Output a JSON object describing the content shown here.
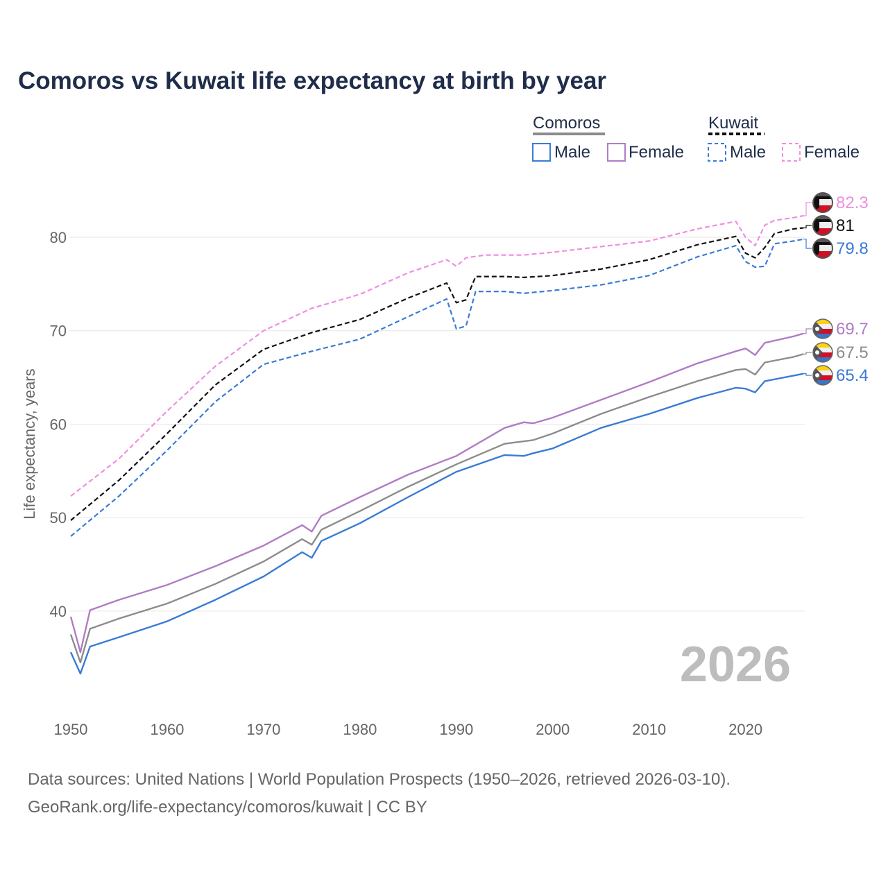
{
  "title": "Comoros vs Kuwait life expectancy at birth by year",
  "legend": {
    "groups": [
      {
        "label": "Comoros",
        "items": [
          {
            "label": "Male"
          },
          {
            "label": "Female"
          }
        ]
      },
      {
        "label": "Kuwait",
        "items": [
          {
            "label": "Male"
          },
          {
            "label": "Female"
          }
        ]
      }
    ]
  },
  "year_label": "2026",
  "sources": {
    "line1": "Data sources: United Nations | World Population Prospects (1950–2026, retrieved 2026-03-10).",
    "line2": "GeoRank.org/life-expectancy/comoros/kuwait | CC BY"
  },
  "flags": {
    "kuwait": {
      "icon": "kuwait-flag-icon",
      "colors": [
        "#111111",
        "#eeeeee",
        "#cf1124",
        "#555555"
      ]
    },
    "comoros": {
      "icon": "comoros-flag-icon",
      "colors": [
        "#fcd116",
        "#f0f0f0",
        "#ce1126",
        "#3a75c4",
        "#555555"
      ]
    }
  },
  "chart_data": {
    "type": "line",
    "title": "Comoros vs Kuwait life expectancy at birth by year",
    "xlabel": "",
    "ylabel": "Life expectancy, years",
    "xlim": [
      1950,
      2026
    ],
    "ylim": [
      30,
      87
    ],
    "xticks": [
      1950,
      1960,
      1970,
      1980,
      1990,
      2000,
      2010,
      2020
    ],
    "yticks": [
      40,
      50,
      60,
      70,
      80
    ],
    "grid": true,
    "legend_position": "top-right",
    "series": [
      {
        "name": "Kuwait Female",
        "country": "Kuwait",
        "sex": "Female",
        "color": "#f08ee0",
        "dashed": true,
        "end_label": "82.3",
        "points": [
          [
            1950,
            52.3
          ],
          [
            1955,
            56.3
          ],
          [
            1960,
            61.4
          ],
          [
            1965,
            66.2
          ],
          [
            1970,
            70.0
          ],
          [
            1975,
            72.4
          ],
          [
            1980,
            73.9
          ],
          [
            1985,
            76.2
          ],
          [
            1989,
            77.6
          ],
          [
            1990,
            76.9
          ],
          [
            1991,
            77.8
          ],
          [
            1993,
            78.1
          ],
          [
            1997,
            78.1
          ],
          [
            2000,
            78.4
          ],
          [
            2005,
            79.0
          ],
          [
            2010,
            79.6
          ],
          [
            2015,
            80.9
          ],
          [
            2019,
            81.7
          ],
          [
            2020,
            80.0
          ],
          [
            2021,
            79.1
          ],
          [
            2022,
            81.3
          ],
          [
            2023,
            81.8
          ],
          [
            2025,
            82.1
          ],
          [
            2026,
            82.3
          ]
        ]
      },
      {
        "name": "Kuwait",
        "country": "Kuwait",
        "sex": "Total",
        "color": "#111111",
        "dashed": true,
        "end_label": "81",
        "points": [
          [
            1950,
            49.7
          ],
          [
            1955,
            54.0
          ],
          [
            1960,
            59.0
          ],
          [
            1965,
            64.2
          ],
          [
            1970,
            68.0
          ],
          [
            1975,
            69.8
          ],
          [
            1980,
            71.2
          ],
          [
            1985,
            73.5
          ],
          [
            1989,
            75.1
          ],
          [
            1990,
            73.0
          ],
          [
            1991,
            73.3
          ],
          [
            1992,
            75.8
          ],
          [
            1995,
            75.8
          ],
          [
            1997,
            75.7
          ],
          [
            2000,
            75.9
          ],
          [
            2005,
            76.6
          ],
          [
            2010,
            77.6
          ],
          [
            2015,
            79.2
          ],
          [
            2019,
            80.1
          ],
          [
            2020,
            78.3
          ],
          [
            2021,
            77.8
          ],
          [
            2022,
            78.9
          ],
          [
            2023,
            80.4
          ],
          [
            2025,
            80.9
          ],
          [
            2026,
            81.0
          ]
        ]
      },
      {
        "name": "Kuwait Male",
        "country": "Kuwait",
        "sex": "Male",
        "color": "#3a7bd5",
        "dashed": true,
        "end_label": "79.8",
        "points": [
          [
            1950,
            48.0
          ],
          [
            1955,
            52.3
          ],
          [
            1960,
            57.2
          ],
          [
            1965,
            62.4
          ],
          [
            1970,
            66.4
          ],
          [
            1975,
            67.8
          ],
          [
            1980,
            69.1
          ],
          [
            1985,
            71.5
          ],
          [
            1989,
            73.4
          ],
          [
            1990,
            70.2
          ],
          [
            1991,
            70.5
          ],
          [
            1992,
            74.2
          ],
          [
            1995,
            74.2
          ],
          [
            1997,
            74.0
          ],
          [
            2000,
            74.3
          ],
          [
            2005,
            74.9
          ],
          [
            2010,
            75.9
          ],
          [
            2015,
            77.9
          ],
          [
            2019,
            79.1
          ],
          [
            2020,
            77.4
          ],
          [
            2021,
            76.8
          ],
          [
            2022,
            76.9
          ],
          [
            2023,
            79.3
          ],
          [
            2025,
            79.6
          ],
          [
            2026,
            79.8
          ]
        ]
      },
      {
        "name": "Comoros Female",
        "country": "Comoros",
        "sex": "Female",
        "color": "#b07cc6",
        "dashed": false,
        "end_label": "69.7",
        "points": [
          [
            1950,
            39.4
          ],
          [
            1951,
            35.6
          ],
          [
            1952,
            40.1
          ],
          [
            1955,
            41.2
          ],
          [
            1960,
            42.8
          ],
          [
            1965,
            44.8
          ],
          [
            1970,
            47.0
          ],
          [
            1974,
            49.2
          ],
          [
            1975,
            48.5
          ],
          [
            1976,
            50.2
          ],
          [
            1980,
            52.2
          ],
          [
            1985,
            54.6
          ],
          [
            1990,
            56.6
          ],
          [
            1995,
            59.6
          ],
          [
            1997,
            60.2
          ],
          [
            1998,
            60.1
          ],
          [
            2000,
            60.7
          ],
          [
            2005,
            62.6
          ],
          [
            2010,
            64.5
          ],
          [
            2015,
            66.5
          ],
          [
            2019,
            67.8
          ],
          [
            2020,
            68.1
          ],
          [
            2021,
            67.4
          ],
          [
            2022,
            68.7
          ],
          [
            2025,
            69.4
          ],
          [
            2026,
            69.7
          ]
        ]
      },
      {
        "name": "Comoros",
        "country": "Comoros",
        "sex": "Total",
        "color": "#8c8c8c",
        "dashed": false,
        "end_label": "67.5",
        "points": [
          [
            1950,
            37.5
          ],
          [
            1951,
            34.5
          ],
          [
            1952,
            38.1
          ],
          [
            1955,
            39.2
          ],
          [
            1960,
            40.8
          ],
          [
            1965,
            42.9
          ],
          [
            1970,
            45.3
          ],
          [
            1974,
            47.7
          ],
          [
            1975,
            47.1
          ],
          [
            1976,
            48.7
          ],
          [
            1980,
            50.7
          ],
          [
            1985,
            53.3
          ],
          [
            1990,
            55.7
          ],
          [
            1995,
            57.9
          ],
          [
            1998,
            58.3
          ],
          [
            2000,
            59.0
          ],
          [
            2005,
            61.1
          ],
          [
            2010,
            62.9
          ],
          [
            2015,
            64.6
          ],
          [
            2019,
            65.8
          ],
          [
            2020,
            65.9
          ],
          [
            2021,
            65.3
          ],
          [
            2022,
            66.6
          ],
          [
            2025,
            67.2
          ],
          [
            2026,
            67.5
          ]
        ]
      },
      {
        "name": "Comoros Male",
        "country": "Comoros",
        "sex": "Male",
        "color": "#3a7bd5",
        "dashed": false,
        "end_label": "65.4",
        "points": [
          [
            1950,
            35.6
          ],
          [
            1951,
            33.3
          ],
          [
            1952,
            36.2
          ],
          [
            1955,
            37.2
          ],
          [
            1960,
            38.9
          ],
          [
            1965,
            41.2
          ],
          [
            1970,
            43.7
          ],
          [
            1974,
            46.3
          ],
          [
            1975,
            45.7
          ],
          [
            1976,
            47.5
          ],
          [
            1980,
            49.4
          ],
          [
            1985,
            52.2
          ],
          [
            1990,
            54.9
          ],
          [
            1995,
            56.7
          ],
          [
            1997,
            56.6
          ],
          [
            1998,
            56.9
          ],
          [
            2000,
            57.4
          ],
          [
            2005,
            59.6
          ],
          [
            2010,
            61.1
          ],
          [
            2015,
            62.8
          ],
          [
            2019,
            63.9
          ],
          [
            2020,
            63.8
          ],
          [
            2021,
            63.4
          ],
          [
            2022,
            64.6
          ],
          [
            2025,
            65.2
          ],
          [
            2026,
            65.4
          ]
        ]
      }
    ]
  }
}
